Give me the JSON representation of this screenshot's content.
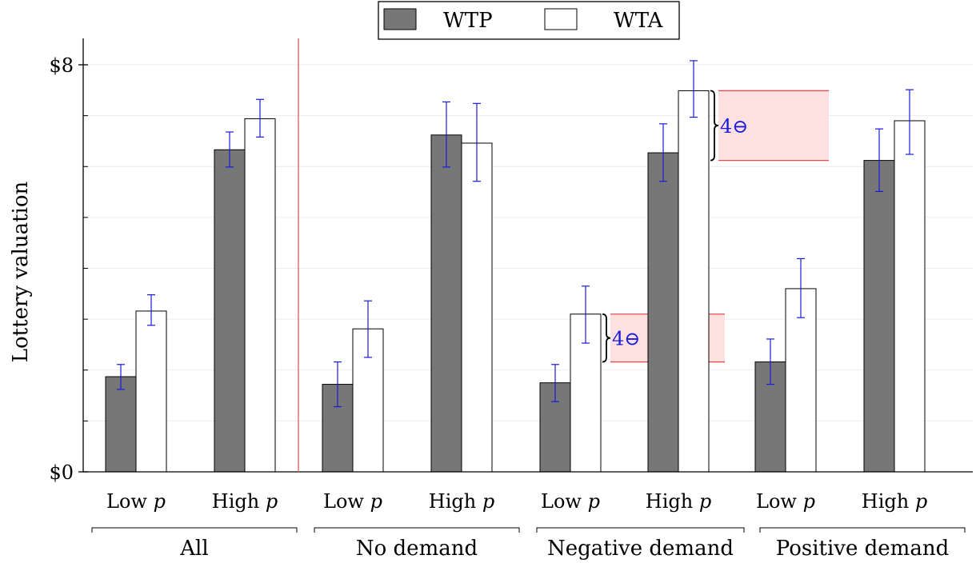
{
  "chart_data": {
    "type": "bar",
    "ylabel": "Lottery valuation",
    "ylim": [
      0,
      8
    ],
    "yticks": [
      {
        "value": 0,
        "label": "$0"
      },
      {
        "value": 8,
        "label": "$8"
      }
    ],
    "minor_gridlines": [
      1,
      2,
      3,
      4,
      5,
      6,
      7
    ],
    "legend": {
      "placement": "top-center"
    },
    "series": [
      {
        "name": "WTP",
        "color": "#777777",
        "fill": "#777777"
      },
      {
        "name": "WTA",
        "color": "#000000",
        "fill": "#ffffff"
      }
    ],
    "groups": [
      {
        "label": "All",
        "categories": [
          {
            "label": "Low p",
            "wtp": 1.87,
            "wtp_err": [
              1.62,
              2.11
            ],
            "wta": 3.16,
            "wta_err": [
              2.88,
              3.48
            ]
          },
          {
            "label": "High p",
            "wtp": 6.33,
            "wtp_err": [
              5.99,
              6.68
            ],
            "wta": 6.94,
            "wta_err": [
              6.58,
              7.32
            ]
          }
        ]
      },
      {
        "label": "No demand",
        "categories": [
          {
            "label": "Low p",
            "wtp": 1.72,
            "wtp_err": [
              1.28,
              2.16
            ],
            "wta": 2.81,
            "wta_err": [
              2.25,
              3.36
            ]
          },
          {
            "label": "High p",
            "wtp": 6.62,
            "wtp_err": [
              5.99,
              7.27
            ],
            "wta": 6.46,
            "wta_err": [
              5.71,
              7.24
            ]
          }
        ]
      },
      {
        "label": "Negative demand",
        "categories": [
          {
            "label": "Low p",
            "wtp": 1.75,
            "wtp_err": [
              1.38,
              2.11
            ],
            "wta": 3.1,
            "wta_err": [
              2.53,
              3.65
            ]
          },
          {
            "label": "High p",
            "wtp": 6.27,
            "wtp_err": [
              5.71,
              6.84
            ],
            "wta": 7.49,
            "wta_err": [
              6.97,
              8.08
            ]
          }
        ]
      },
      {
        "label": "Positive demand",
        "categories": [
          {
            "label": "Low p",
            "wtp": 2.16,
            "wtp_err": [
              1.72,
              2.61
            ],
            "wta": 3.6,
            "wta_err": [
              3.03,
              4.19
            ]
          },
          {
            "label": "High p",
            "wtp": 6.12,
            "wtp_err": [
              5.51,
              6.74
            ],
            "wta": 6.9,
            "wta_err": [
              6.24,
              7.51
            ]
          }
        ]
      }
    ],
    "annotations": [
      {
        "label": "4⊖",
        "group": 2,
        "category": 0,
        "from": 2.16,
        "to": 3.1
      },
      {
        "label": "4⊖",
        "group": 2,
        "category": 1,
        "from": 6.12,
        "to": 7.49
      }
    ]
  }
}
